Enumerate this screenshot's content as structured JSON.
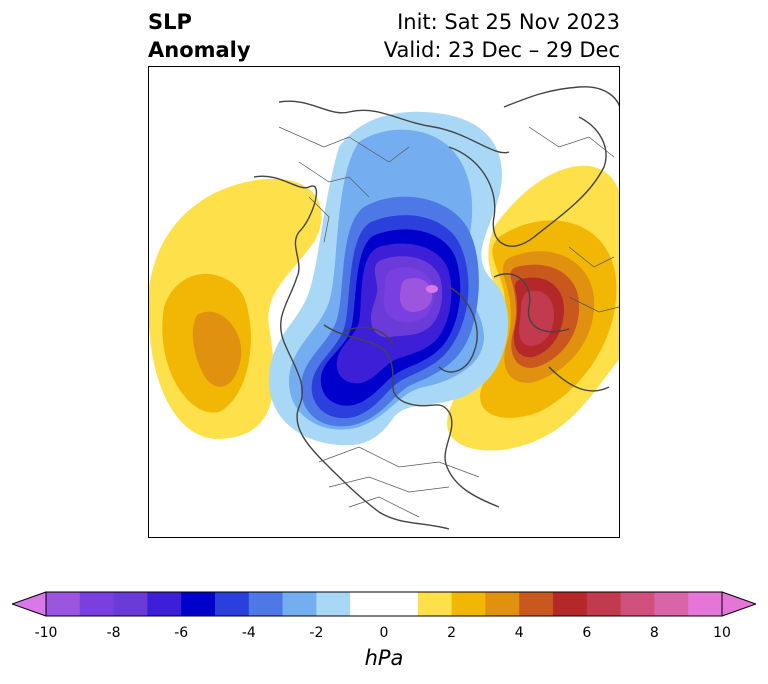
{
  "title": {
    "left_line1": "SLP",
    "left_line2": "Anomaly",
    "init": "Init: Sat 25 Nov 2023",
    "valid": "Valid: 23 Dec – 29 Dec"
  },
  "colorbar": {
    "units": "hPa",
    "ticks": [
      "-10",
      "-8",
      "-6",
      "-4",
      "-2",
      "0",
      "2",
      "4",
      "6",
      "8",
      "10"
    ],
    "bins": [
      {
        "min": -10,
        "max": -9,
        "color": "#9b55df"
      },
      {
        "min": -9,
        "max": -8,
        "color": "#7a3fe0"
      },
      {
        "min": -8,
        "max": -7,
        "color": "#6a3bd8"
      },
      {
        "min": -7,
        "max": -6,
        "color": "#3c1fd6"
      },
      {
        "min": -6,
        "max": -5,
        "color": "#0000cd"
      },
      {
        "min": -5,
        "max": -4,
        "color": "#2a3fdc"
      },
      {
        "min": -4,
        "max": -3,
        "color": "#4d78e6"
      },
      {
        "min": -3,
        "max": -2,
        "color": "#74aef0"
      },
      {
        "min": -2,
        "max": -1,
        "color": "#a9d8f7"
      },
      {
        "min": -1,
        "max": 1,
        "color": "#ffffff"
      },
      {
        "min": 1,
        "max": 2,
        "color": "#fde04a"
      },
      {
        "min": 2,
        "max": 3,
        "color": "#f2b705"
      },
      {
        "min": 3,
        "max": 4,
        "color": "#e0910f"
      },
      {
        "min": 4,
        "max": 5,
        "color": "#c9581f"
      },
      {
        "min": 5,
        "max": 6,
        "color": "#b5282a"
      },
      {
        "min": 6,
        "max": 7,
        "color": "#c23a4e"
      },
      {
        "min": 7,
        "max": 8,
        "color": "#cf4f7d"
      },
      {
        "min": 8,
        "max": 9,
        "color": "#d965a8"
      },
      {
        "min": 9,
        "max": 10,
        "color": "#e675d8"
      }
    ],
    "under_color": "#d978e8",
    "over_color": "#e675d8"
  }
}
